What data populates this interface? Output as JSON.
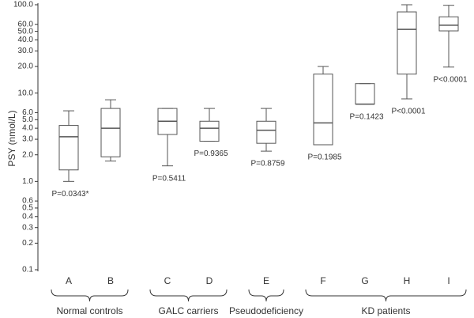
{
  "chart_data": {
    "type": "box",
    "y_label": "PSY (nmol/L)",
    "log_scale": true,
    "color": "#555555",
    "ylim": [
      0.1,
      100
    ],
    "yticks": [
      {
        "value": 100,
        "label": "100.0"
      },
      {
        "value": 60,
        "label": "60.0"
      },
      {
        "value": 50,
        "label": "50.0"
      },
      {
        "value": 40,
        "label": "40.0"
      },
      {
        "value": 30,
        "label": "30.0"
      },
      {
        "value": 20,
        "label": "20.0"
      },
      {
        "value": 10,
        "label": "10.0"
      },
      {
        "value": 6,
        "label": "6.0"
      },
      {
        "value": 5,
        "label": "5.0"
      },
      {
        "value": 4,
        "label": "4.0"
      },
      {
        "value": 3,
        "label": "3.0"
      },
      {
        "value": 2,
        "label": "2.0"
      },
      {
        "value": 1,
        "label": "1.0"
      },
      {
        "value": 0.6,
        "label": "0.6"
      },
      {
        "value": 0.5,
        "label": "0.5"
      },
      {
        "value": 0.4,
        "label": "0.4"
      },
      {
        "value": 0.3,
        "label": "0.3"
      },
      {
        "value": 0.2,
        "label": "0.2"
      },
      {
        "value": 0.1,
        "label": "0.1"
      }
    ],
    "categories": [
      "A",
      "B",
      "C",
      "D",
      "E",
      "F",
      "G",
      "H",
      "I"
    ],
    "min": [
      1.0,
      1.7,
      1.5,
      2.85,
      2.2,
      2.6,
      7.5,
      8.6,
      19.7
    ],
    "q1": [
      1.35,
      1.9,
      3.4,
      2.85,
      2.7,
      2.6,
      7.5,
      16.4,
      50.6
    ],
    "median": [
      3.2,
      4.0,
      4.8,
      4.0,
      3.8,
      4.6,
      7.5,
      52.7,
      58.6
    ],
    "q3": [
      4.3,
      6.7,
      6.7,
      4.8,
      4.8,
      16.4,
      12.8,
      83,
      73
    ],
    "max": [
      6.3,
      8.4,
      6.7,
      6.7,
      6.7,
      20,
      12.8,
      100,
      98.6
    ],
    "p_values": [
      "P=0.0343*",
      null,
      "P=0.5411",
      "P=0.9365",
      "P=0.8759",
      "P=0.1985",
      "P=0.1423",
      "P<0.0001",
      "P<0.0001"
    ],
    "groups": [
      {
        "name": "Normal controls",
        "categories": [
          "A",
          "B"
        ]
      },
      {
        "name": "GALC carriers",
        "categories": [
          "C",
          "D"
        ]
      },
      {
        "name": "Pseudodeficiency",
        "categories": [
          "E"
        ]
      },
      {
        "name": "KD patients",
        "categories": [
          "F",
          "G",
          "H",
          "I"
        ]
      }
    ]
  }
}
